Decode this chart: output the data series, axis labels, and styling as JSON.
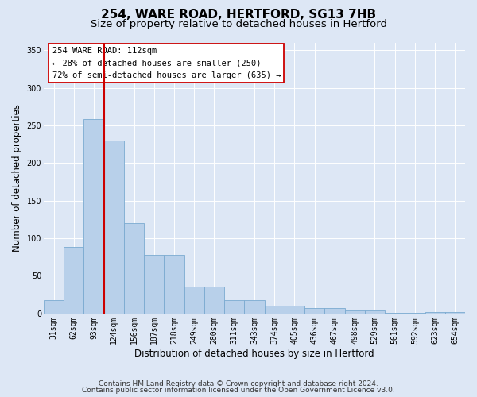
{
  "title": "254, WARE ROAD, HERTFORD, SG13 7HB",
  "subtitle": "Size of property relative to detached houses in Hertford",
  "xlabel": "Distribution of detached houses by size in Hertford",
  "ylabel": "Number of detached properties",
  "categories": [
    "31sqm",
    "62sqm",
    "93sqm",
    "124sqm",
    "156sqm",
    "187sqm",
    "218sqm",
    "249sqm",
    "280sqm",
    "311sqm",
    "343sqm",
    "374sqm",
    "405sqm",
    "436sqm",
    "467sqm",
    "498sqm",
    "529sqm",
    "561sqm",
    "592sqm",
    "623sqm",
    "654sqm"
  ],
  "values": [
    17,
    88,
    258,
    230,
    120,
    78,
    78,
    35,
    35,
    18,
    18,
    10,
    10,
    7,
    7,
    4,
    4,
    1,
    1,
    2,
    2
  ],
  "bar_color": "#b8d0ea",
  "bar_edge_color": "#7aaad0",
  "vline_color": "#cc0000",
  "annotation_text": "254 WARE ROAD: 112sqm\n← 28% of detached houses are smaller (250)\n72% of semi-detached houses are larger (635) →",
  "annotation_box_edge_color": "#cc0000",
  "bg_color": "#dde7f5",
  "ylim": [
    0,
    360
  ],
  "yticks": [
    0,
    50,
    100,
    150,
    200,
    250,
    300,
    350
  ],
  "title_fontsize": 11,
  "subtitle_fontsize": 9.5,
  "ylabel_fontsize": 8.5,
  "xlabel_fontsize": 8.5,
  "tick_fontsize": 7,
  "annot_fontsize": 7.5,
  "footer_fontsize": 6.5,
  "footer_line1": "Contains HM Land Registry data © Crown copyright and database right 2024.",
  "footer_line2": "Contains public sector information licensed under the Open Government Licence v3.0."
}
